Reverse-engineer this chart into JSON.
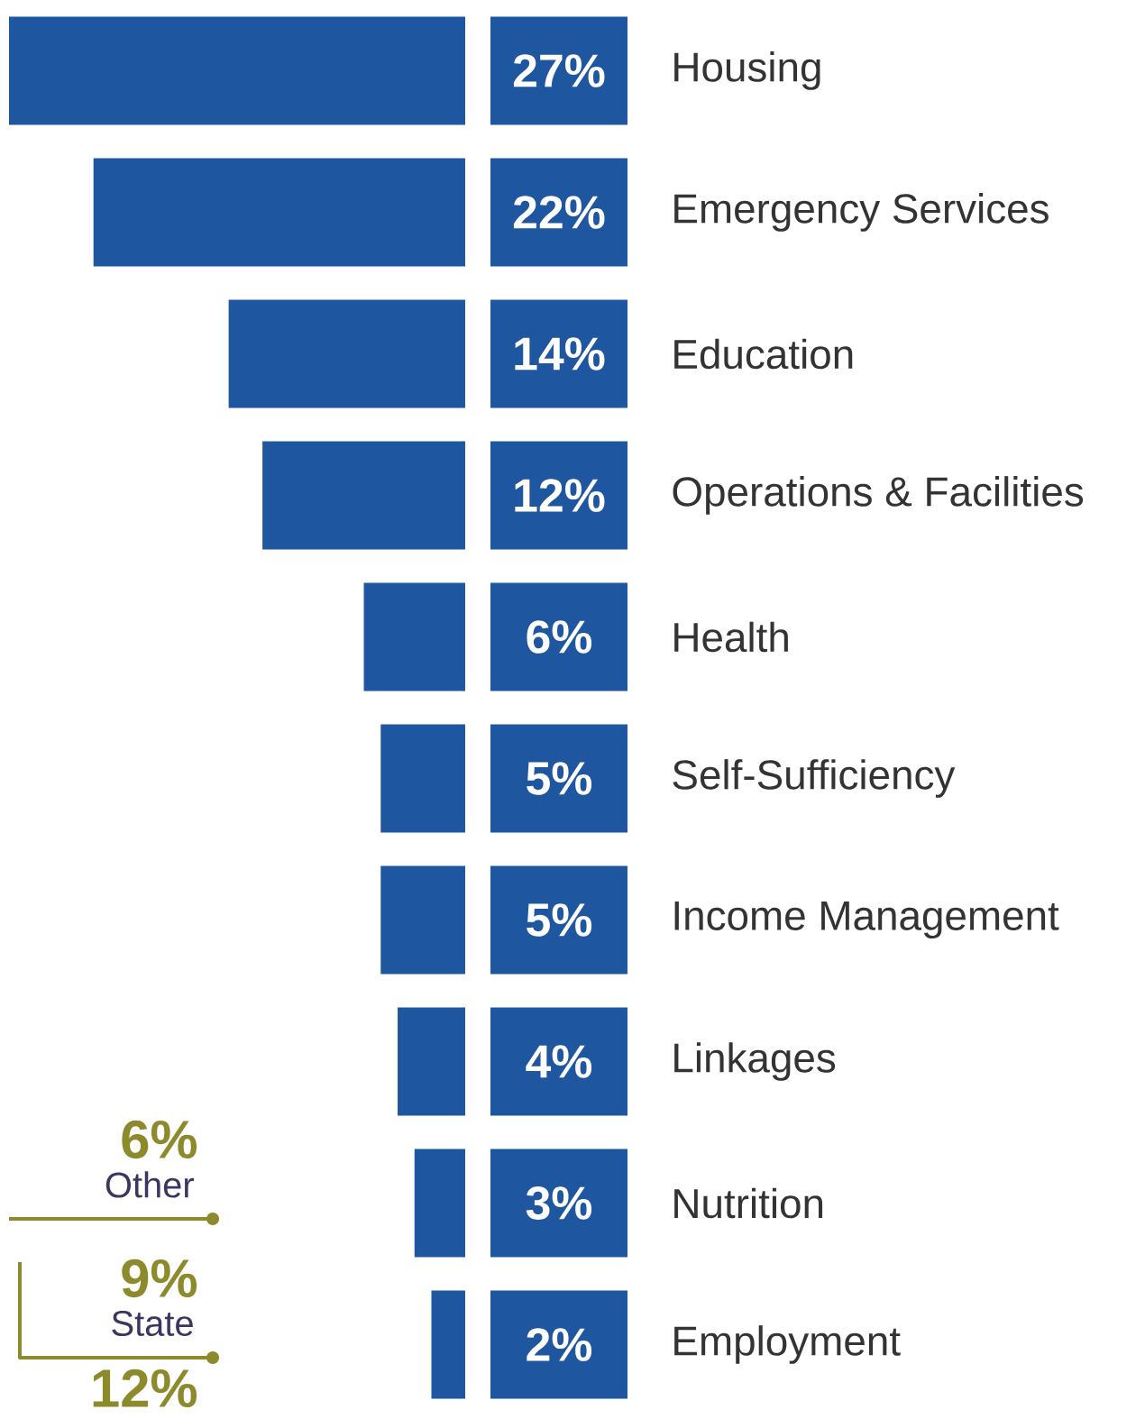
{
  "chart_data": {
    "type": "bar",
    "orientation": "horizontal",
    "categories": [
      "Housing",
      "Emergency Services",
      "Education",
      "Operations & Facilities",
      "Health",
      "Self-Sufficiency",
      "Income Management",
      "Linkages",
      "Nutrition",
      "Employment"
    ],
    "values": [
      27,
      22,
      14,
      12,
      6,
      5,
      5,
      4,
      3,
      2
    ],
    "value_labels": [
      "27%",
      "22%",
      "14%",
      "12%",
      "6%",
      "5%",
      "5%",
      "4%",
      "3%",
      "2%"
    ],
    "color": "#1f56a0",
    "annotations": [
      "6%",
      "Other",
      "9%",
      "State",
      "12%"
    ]
  }
}
